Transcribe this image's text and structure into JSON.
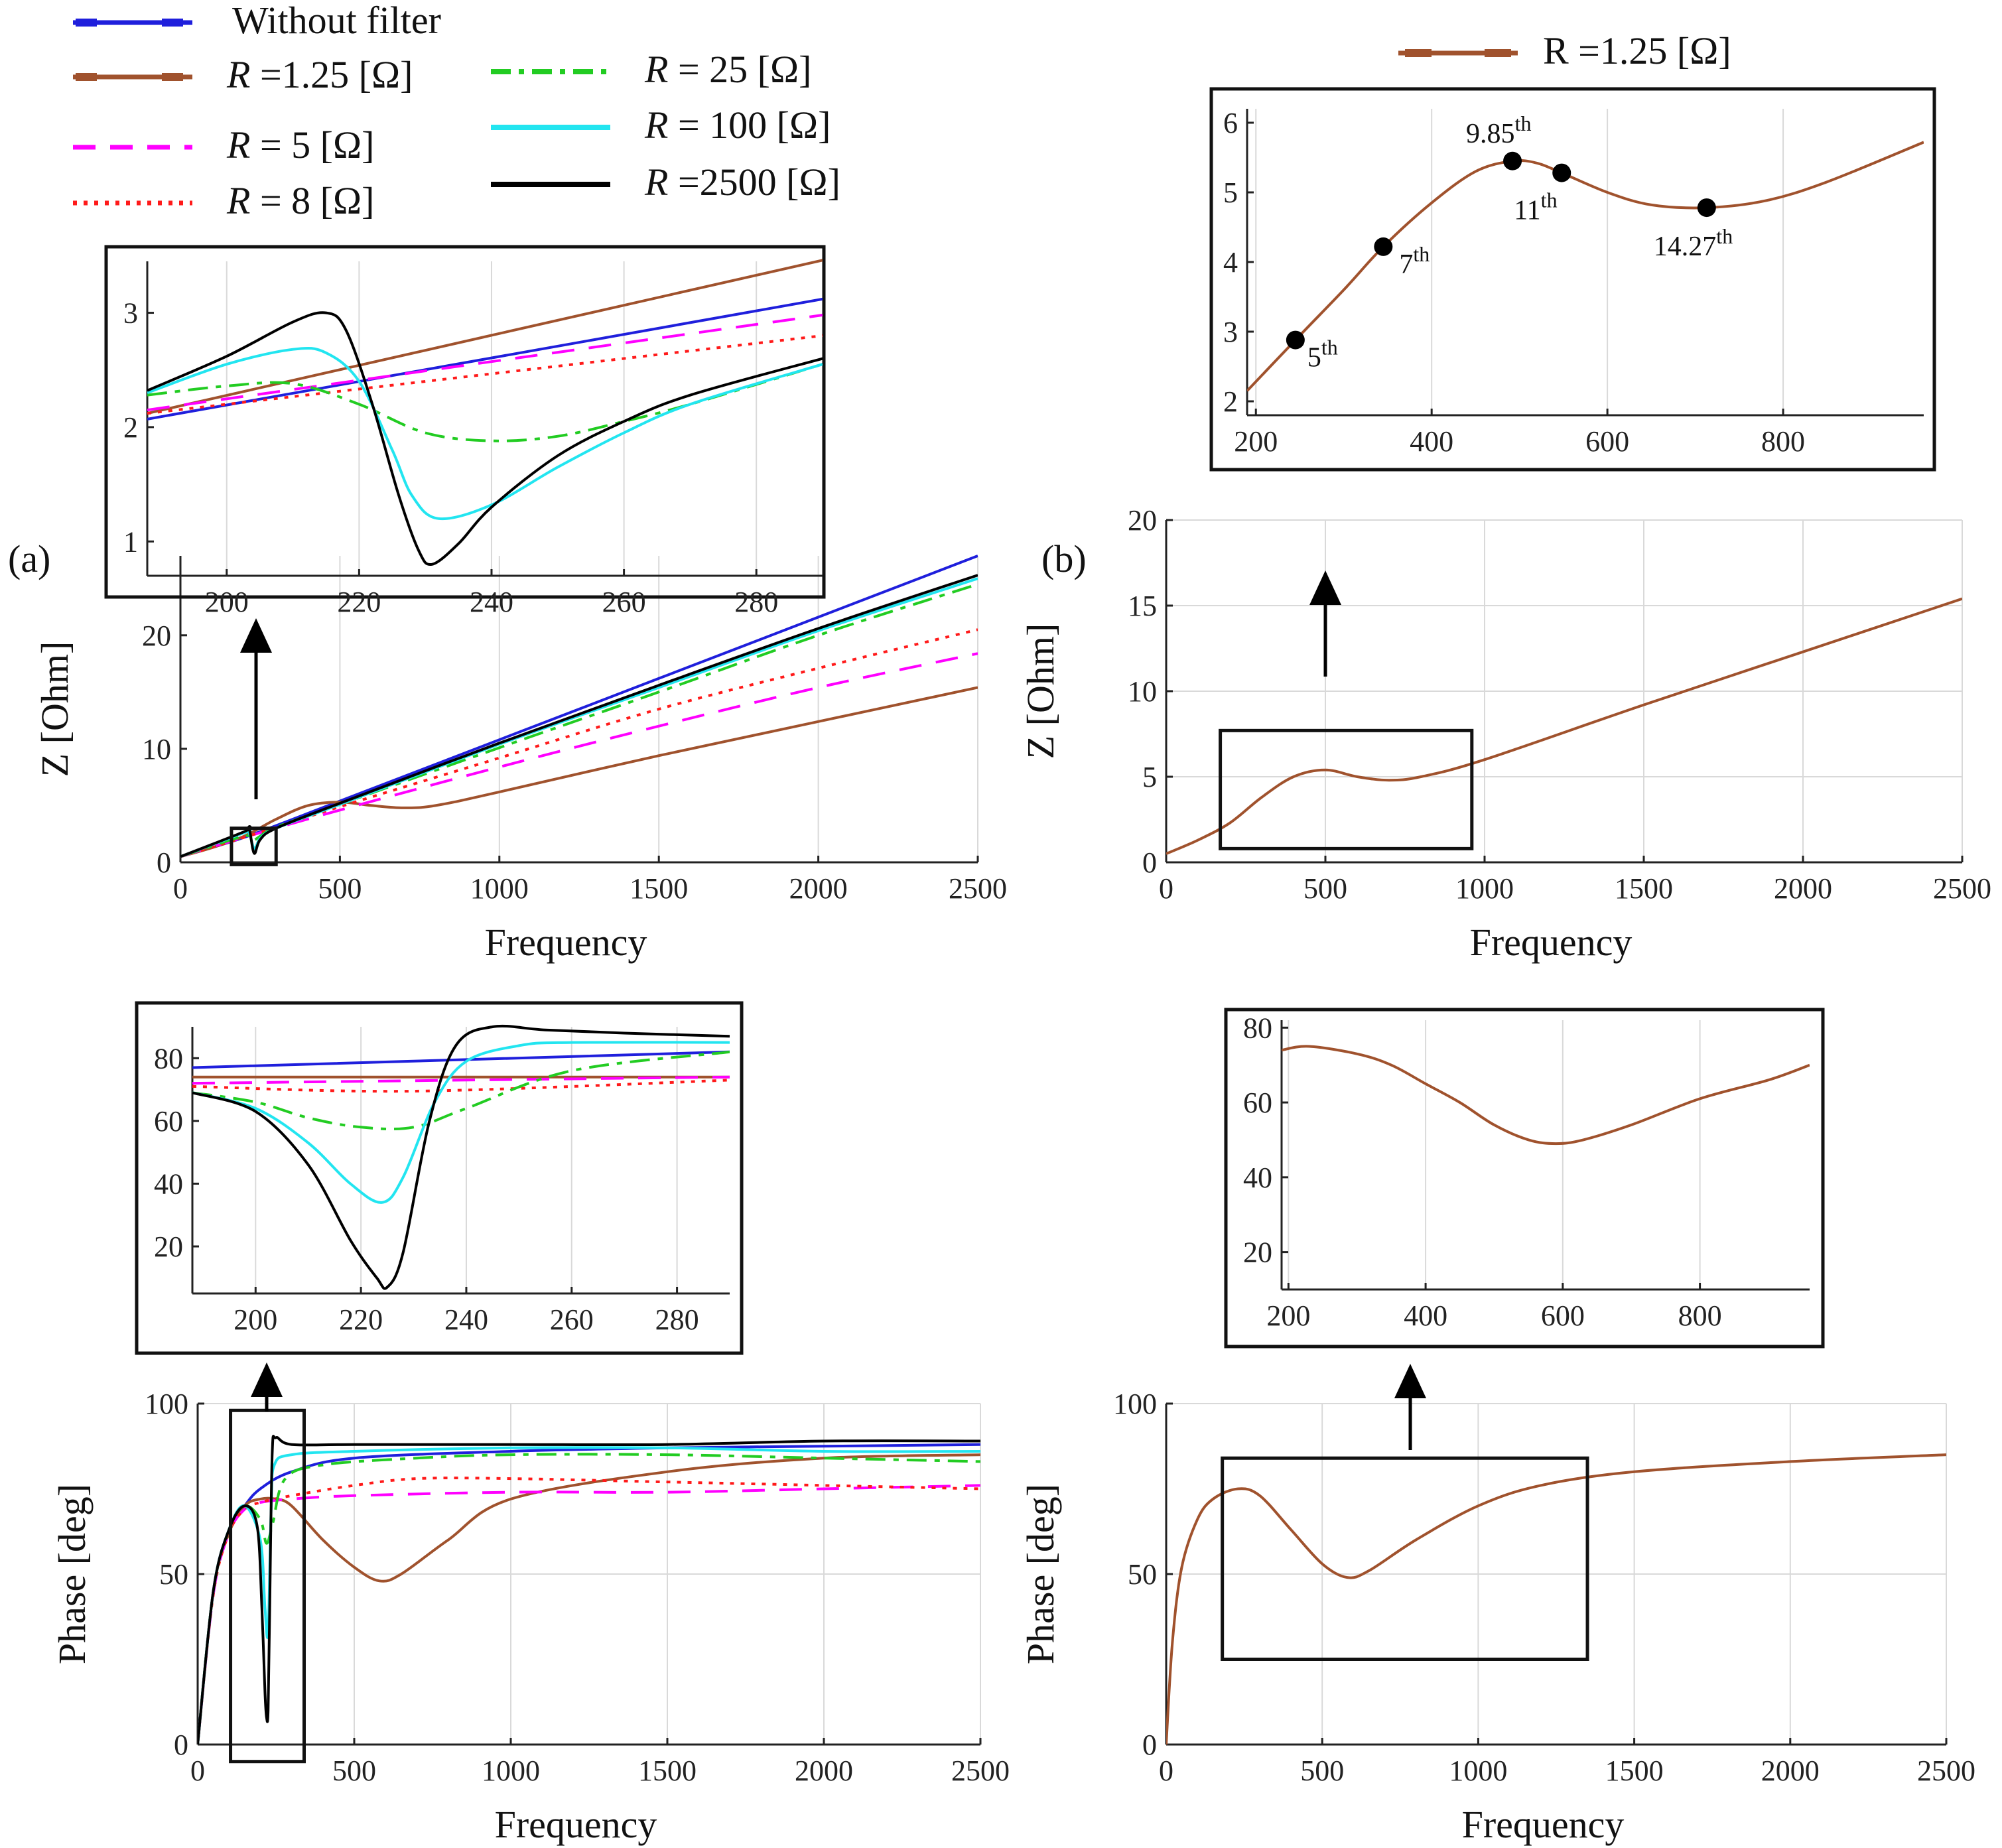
{
  "labels": {
    "panel_a": "(a)",
    "panel_b": "(b)",
    "impedance_axis": "Z  [Ohm]",
    "phase_axis": "Phase   [deg]",
    "frequency": "Frequency",
    "legend_b": "R =1.25 [Ω]"
  },
  "legend": [
    {
      "id": "without",
      "r": "",
      "unit": "",
      "label": "Without filter",
      "color": "#1f1fdc",
      "dash": "long"
    },
    {
      "id": "r125",
      "r": "R",
      "unit": "=1.25 [Ω]",
      "label": "",
      "color": "#a0522d",
      "dash": "long"
    },
    {
      "id": "r5",
      "r": "R",
      "unit": "=  5    [Ω]",
      "label": "",
      "color": "#ff00ff",
      "dash": "dash"
    },
    {
      "id": "r8",
      "r": "R",
      "unit": "=  8    [Ω]",
      "label": "",
      "color": "#ff1a1a",
      "dash": "dot"
    },
    {
      "id": "r25",
      "r": "R",
      "unit": "=  25    [Ω]",
      "label": "",
      "color": "#22cc22",
      "dash": "dashdot"
    },
    {
      "id": "r100",
      "r": "R",
      "unit": "= 100   [Ω]",
      "label": "",
      "color": "#22e5f0",
      "dash": "solid"
    },
    {
      "id": "r2500",
      "r": "R",
      "unit": "=2500 [Ω]",
      "label": "",
      "color": "#000000",
      "dash": "solid"
    }
  ],
  "harmonics": [
    {
      "label": "5",
      "sup": "th",
      "f": 245,
      "z": 2.88
    },
    {
      "label": "7",
      "sup": "th",
      "f": 345,
      "z": 4.22
    },
    {
      "label": "9.85",
      "sup": "th",
      "f": 492,
      "z": 5.45
    },
    {
      "label": "11",
      "sup": "th",
      "f": 548,
      "z": 5.28
    },
    {
      "label": "14.27",
      "sup": "th",
      "f": 713,
      "z": 4.78
    }
  ],
  "chart_data": [
    {
      "id": "a_impedance",
      "type": "line",
      "xlabel": "Frequency",
      "ylabel": "Z  [Ohm]",
      "xlim": [
        0,
        2500
      ],
      "ylim": [
        0,
        27
      ],
      "xticks": [
        0,
        500,
        1000,
        1500,
        2000,
        2500
      ],
      "yticks": [
        0,
        10,
        20
      ],
      "series": [
        {
          "name": "Without filter",
          "x": [
            0,
            200,
            500,
            1000,
            1500,
            2000,
            2500
          ],
          "y": [
            0.5,
            2.2,
            5.4,
            10.8,
            16.2,
            21.6,
            27.0
          ]
        },
        {
          "name": "R =1.25 [Ω]",
          "x": [
            0,
            100,
            200,
            300,
            400,
            500,
            600,
            700,
            800,
            1000,
            1500,
            2000,
            2500
          ],
          "y": [
            0.5,
            1.3,
            2.3,
            3.8,
            5.0,
            5.3,
            5.0,
            4.8,
            5.0,
            6.2,
            9.4,
            12.4,
            15.4
          ]
        },
        {
          "name": "R = 5 [Ω]",
          "x": [
            0,
            200,
            500,
            1000,
            1500,
            2000,
            2500
          ],
          "y": [
            0.5,
            2.2,
            4.6,
            8.4,
            12.0,
            15.4,
            18.4
          ]
        },
        {
          "name": "R = 8 [Ω]",
          "x": [
            0,
            200,
            500,
            1000,
            1500,
            2000,
            2500
          ],
          "y": [
            0.5,
            2.2,
            4.9,
            9.2,
            13.5,
            17.1,
            20.5
          ]
        },
        {
          "name": "R = 25 [Ω]",
          "x": [
            0,
            200,
            225,
            250,
            300,
            500,
            1000,
            1500,
            2000,
            2500
          ],
          "y": [
            0.5,
            2.3,
            1.9,
            2.3,
            3.1,
            5.1,
            10.1,
            15.0,
            20.0,
            24.5
          ]
        },
        {
          "name": "R = 100 [Ω]",
          "x": [
            0,
            200,
            215,
            232,
            250,
            300,
            500,
            1000,
            1500,
            2000,
            2500
          ],
          "y": [
            0.5,
            2.6,
            2.6,
            1.2,
            2.1,
            3.0,
            5.1,
            10.4,
            15.4,
            20.4,
            25.0
          ]
        },
        {
          "name": "R = 2500 [Ω]",
          "x": [
            0,
            200,
            215,
            231,
            250,
            300,
            500,
            1000,
            1500,
            2000,
            2500
          ],
          "y": [
            0.5,
            2.7,
            3.0,
            0.8,
            2.0,
            3.0,
            5.2,
            10.5,
            15.6,
            20.6,
            25.3
          ]
        }
      ]
    },
    {
      "id": "a_impedance_inset",
      "type": "line",
      "xlim": [
        188,
        290
      ],
      "ylim": [
        0.7,
        3.45
      ],
      "xticks": [
        200,
        220,
        240,
        260,
        280
      ],
      "yticks": [
        1,
        2,
        3
      ],
      "series": [
        {
          "name": "Without filter",
          "x": [
            188,
            290
          ],
          "y": [
            2.07,
            3.12
          ]
        },
        {
          "name": "R =1.25 [Ω]",
          "x": [
            188,
            290
          ],
          "y": [
            2.12,
            3.46
          ]
        },
        {
          "name": "R = 5 [Ω]",
          "x": [
            188,
            290
          ],
          "y": [
            2.15,
            2.98
          ]
        },
        {
          "name": "R = 8 [Ω]",
          "x": [
            188,
            290
          ],
          "y": [
            2.12,
            2.8
          ]
        },
        {
          "name": "R = 25 [Ω]",
          "x": [
            188,
            200,
            210,
            220,
            230,
            240,
            250,
            260,
            270,
            290
          ],
          "y": [
            2.28,
            2.36,
            2.38,
            2.2,
            1.95,
            1.88,
            1.92,
            2.05,
            2.2,
            2.55
          ]
        },
        {
          "name": "R = 100 [Ω]",
          "x": [
            188,
            200,
            210,
            215,
            220,
            225,
            228,
            232,
            240,
            250,
            260,
            270,
            290
          ],
          "y": [
            2.3,
            2.55,
            2.68,
            2.65,
            2.4,
            1.8,
            1.4,
            1.2,
            1.32,
            1.65,
            1.95,
            2.2,
            2.55
          ]
        },
        {
          "name": "R = 2500 [Ω]",
          "x": [
            188,
            200,
            210,
            215,
            218,
            222,
            226,
            229,
            231,
            235,
            240,
            250,
            260,
            270,
            290
          ],
          "y": [
            2.32,
            2.62,
            2.92,
            3.0,
            2.85,
            2.2,
            1.4,
            0.92,
            0.8,
            0.98,
            1.3,
            1.75,
            2.05,
            2.28,
            2.6
          ]
        }
      ]
    },
    {
      "id": "b_impedance",
      "type": "line",
      "xlabel": "Frequency",
      "ylabel": "Z  [Ohm]",
      "xlim": [
        0,
        2500
      ],
      "ylim": [
        0,
        20
      ],
      "xticks": [
        0,
        500,
        1000,
        1500,
        2000,
        2500
      ],
      "yticks": [
        0,
        5,
        10,
        15,
        20
      ],
      "series": [
        {
          "name": "R =1.25 [Ω]",
          "x": [
            0,
            100,
            200,
            300,
            400,
            500,
            600,
            700,
            800,
            1000,
            1500,
            2000,
            2500
          ],
          "y": [
            0.5,
            1.3,
            2.3,
            3.8,
            5.0,
            5.4,
            5.0,
            4.8,
            5.0,
            6.0,
            9.2,
            12.3,
            15.4
          ]
        }
      ]
    },
    {
      "id": "b_impedance_inset",
      "type": "line",
      "xlim": [
        190,
        960
      ],
      "ylim": [
        1.8,
        6.2
      ],
      "xticks": [
        200,
        400,
        600,
        800
      ],
      "yticks": [
        2,
        3,
        4,
        5,
        6
      ],
      "series": [
        {
          "name": "R =1.25 [Ω]",
          "x": [
            190,
            245,
            300,
            345,
            400,
            450,
            492,
            520,
            548,
            600,
            650,
            713,
            780,
            850,
            960
          ],
          "y": [
            2.15,
            2.88,
            3.6,
            4.22,
            4.85,
            5.3,
            5.45,
            5.42,
            5.28,
            5.0,
            4.82,
            4.78,
            4.88,
            5.15,
            5.72
          ]
        }
      ]
    },
    {
      "id": "a_phase",
      "type": "line",
      "xlabel": "Frequency",
      "ylabel": "Phase   [deg]",
      "xlim": [
        0,
        2500
      ],
      "ylim": [
        0,
        100
      ],
      "xticks": [
        0,
        500,
        1000,
        1500,
        2000,
        2500
      ],
      "yticks": [
        0,
        50,
        100
      ],
      "series": [
        {
          "name": "Without filter",
          "x": [
            0,
            50,
            100,
            150,
            200,
            300,
            500,
            1000,
            1500,
            2000,
            2500
          ],
          "y": [
            0,
            45,
            63,
            70,
            75,
            80,
            84,
            86,
            87,
            87.5,
            88
          ]
        },
        {
          "name": "R =1.25 [Ω]",
          "x": [
            0,
            50,
            100,
            150,
            200,
            250,
            300,
            400,
            500,
            580,
            650,
            800,
            1000,
            1500,
            2000,
            2500
          ],
          "y": [
            0,
            45,
            62,
            70,
            72,
            72,
            70,
            60,
            52,
            48,
            50,
            60,
            72,
            80,
            84,
            85
          ]
        },
        {
          "name": "R = 5 [Ω]",
          "x": [
            0,
            50,
            100,
            150,
            200,
            300,
            500,
            1000,
            1500,
            2000,
            2500
          ],
          "y": [
            0,
            44,
            62,
            69,
            71,
            72,
            73,
            74,
            74,
            75,
            76
          ]
        },
        {
          "name": "R = 8 [Ω]",
          "x": [
            0,
            50,
            100,
            150,
            200,
            300,
            500,
            700,
            1000,
            1500,
            2000,
            2500
          ],
          "y": [
            0,
            44,
            62,
            69,
            71,
            73,
            76,
            78,
            78,
            77,
            76,
            75
          ]
        },
        {
          "name": "R = 25 [Ω]",
          "x": [
            0,
            50,
            100,
            150,
            200,
            220,
            240,
            280,
            400,
            700,
            1000,
            1500,
            2000,
            2500
          ],
          "y": [
            0,
            45,
            63,
            70,
            66,
            59,
            65,
            78,
            82,
            84,
            85,
            85,
            84,
            83
          ]
        },
        {
          "name": "R = 100 [Ω]",
          "x": [
            0,
            50,
            100,
            150,
            200,
            215,
            225,
            235,
            245,
            300,
            500,
            1000,
            1500,
            2000,
            2500
          ],
          "y": [
            0,
            45,
            63,
            70,
            60,
            40,
            33,
            70,
            82,
            85,
            86,
            87,
            87,
            86,
            86
          ]
        },
        {
          "name": "R = 2500 [Ω]",
          "x": [
            0,
            50,
            100,
            150,
            190,
            205,
            215,
            220,
            225,
            230,
            238,
            250,
            300,
            500,
            1000,
            1500,
            2000,
            2500
          ],
          "y": [
            0,
            45,
            63,
            70,
            64,
            40,
            15,
            8,
            10,
            40,
            85,
            90,
            88,
            88,
            88,
            88,
            89,
            89
          ]
        }
      ]
    },
    {
      "id": "a_phase_inset",
      "type": "line",
      "xlim": [
        188,
        290
      ],
      "ylim": [
        5,
        90
      ],
      "xticks": [
        200,
        220,
        240,
        260,
        280
      ],
      "yticks": [
        20,
        40,
        60,
        80
      ],
      "series": [
        {
          "name": "Without filter",
          "x": [
            188,
            290
          ],
          "y": [
            77,
            82
          ]
        },
        {
          "name": "R =1.25 [Ω]",
          "x": [
            188,
            290
          ],
          "y": [
            74,
            74
          ]
        },
        {
          "name": "R = 5 [Ω]",
          "x": [
            188,
            290
          ],
          "y": [
            72,
            74
          ]
        },
        {
          "name": "R = 8 [Ω]",
          "x": [
            188,
            230,
            290
          ],
          "y": [
            71,
            69.5,
            73
          ]
        },
        {
          "name": "R = 25 [Ω]",
          "x": [
            188,
            200,
            210,
            220,
            230,
            240,
            260,
            290
          ],
          "y": [
            69,
            66,
            61,
            58,
            58,
            64,
            76,
            82
          ]
        },
        {
          "name": "R = 100 [Ω]",
          "x": [
            188,
            200,
            210,
            218,
            224,
            228,
            234,
            240,
            250,
            260,
            290
          ],
          "y": [
            69,
            64,
            53,
            40,
            34,
            42,
            66,
            79,
            84,
            85,
            85
          ]
        },
        {
          "name": "R = 2500 [Ω]",
          "x": [
            188,
            200,
            210,
            218,
            223,
            225,
            228,
            233,
            238,
            245,
            255,
            270,
            290
          ],
          "y": [
            69,
            63,
            46,
            22,
            10,
            7,
            18,
            60,
            84,
            90,
            89,
            88,
            87
          ]
        }
      ]
    },
    {
      "id": "b_phase",
      "type": "line",
      "xlabel": "Frequency",
      "ylabel": "Phase   [deg]",
      "xlim": [
        0,
        2500
      ],
      "ylim": [
        0,
        100
      ],
      "xticks": [
        0,
        500,
        1000,
        1500,
        2000,
        2500
      ],
      "yticks": [
        0,
        50,
        100
      ],
      "series": [
        {
          "name": "R =1.25 [Ω]",
          "x": [
            0,
            20,
            50,
            100,
            150,
            230,
            300,
            400,
            500,
            580,
            650,
            800,
            1000,
            1200,
            1500,
            2000,
            2500
          ],
          "y": [
            0,
            30,
            52,
            66,
            72,
            75,
            73,
            63,
            53,
            49,
            51,
            60,
            70,
            76,
            80,
            83,
            85
          ]
        }
      ]
    },
    {
      "id": "b_phase_inset",
      "type": "line",
      "xlim": [
        190,
        960
      ],
      "ylim": [
        10,
        82
      ],
      "xticks": [
        200,
        400,
        600,
        800
      ],
      "yticks": [
        20,
        40,
        60,
        80
      ],
      "series": [
        {
          "name": "R =1.25 [Ω]",
          "x": [
            190,
            230,
            300,
            350,
            400,
            450,
            500,
            550,
            590,
            630,
            700,
            800,
            900,
            960
          ],
          "y": [
            74,
            75,
            73,
            70,
            65,
            60,
            54,
            50,
            49,
            50,
            54,
            61,
            66,
            70
          ]
        }
      ]
    }
  ]
}
